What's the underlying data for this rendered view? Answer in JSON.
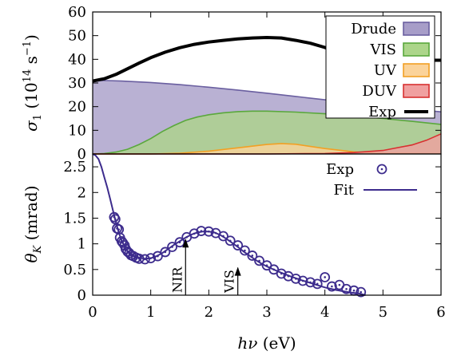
{
  "chart_data": [
    {
      "type": "area",
      "ylabel": "σ₁ (10¹⁴ s⁻¹)",
      "xlim": [
        0,
        6
      ],
      "ylim": [
        0,
        60
      ],
      "yticks": [
        "0",
        "10",
        "20",
        "30",
        "40",
        "50",
        "60"
      ],
      "legend_position": "top-right",
      "series": [
        {
          "name": "Drude",
          "color": "#a79dc8",
          "edge": "#6a5fa0",
          "kind": "area",
          "points": [
            [
              0,
              31
            ],
            [
              0.25,
              31
            ],
            [
              0.5,
              30.8
            ],
            [
              1,
              30.2
            ],
            [
              1.5,
              29.3
            ],
            [
              2,
              28.2
            ],
            [
              2.5,
              27
            ],
            [
              3,
              25.7
            ],
            [
              3.5,
              24.3
            ],
            [
              4,
              22.9
            ],
            [
              4.5,
              21.4
            ],
            [
              5,
              20
            ],
            [
              5.5,
              18.9
            ],
            [
              6,
              17.8
            ]
          ]
        },
        {
          "name": "VIS",
          "color": "#acd58a",
          "edge": "#5aa83c",
          "kind": "area",
          "points": [
            [
              0,
              0
            ],
            [
              0.2,
              0.2
            ],
            [
              0.4,
              0.8
            ],
            [
              0.6,
              2
            ],
            [
              0.8,
              4
            ],
            [
              1,
              6.5
            ],
            [
              1.2,
              9.5
            ],
            [
              1.4,
              12
            ],
            [
              1.6,
              14.2
            ],
            [
              1.8,
              15.6
            ],
            [
              2,
              16.6
            ],
            [
              2.25,
              17.4
            ],
            [
              2.5,
              17.9
            ],
            [
              2.75,
              18.1
            ],
            [
              3,
              18.1
            ],
            [
              3.5,
              17.7
            ],
            [
              4,
              17
            ],
            [
              4.5,
              16
            ],
            [
              5,
              15
            ],
            [
              5.5,
              13.8
            ],
            [
              6,
              12.5
            ]
          ]
        },
        {
          "name": "UV",
          "color": "#fbd39a",
          "edge": "#f2a024",
          "kind": "area",
          "points": [
            [
              0,
              0
            ],
            [
              1,
              0
            ],
            [
              1.5,
              0.3
            ],
            [
              2,
              1.2
            ],
            [
              2.5,
              2.6
            ],
            [
              3,
              4
            ],
            [
              3.25,
              4.4
            ],
            [
              3.5,
              4.1
            ],
            [
              4,
              2.3
            ],
            [
              4.5,
              0.9
            ],
            [
              5,
              0.3
            ],
            [
              6,
              0.1
            ]
          ]
        },
        {
          "name": "DUV",
          "color": "#f0a0a0",
          "edge": "#d83030",
          "kind": "area",
          "points": [
            [
              0,
              0
            ],
            [
              3,
              0
            ],
            [
              4,
              0.2
            ],
            [
              4.5,
              0.6
            ],
            [
              5,
              1.5
            ],
            [
              5.5,
              3.8
            ],
            [
              5.75,
              5.8
            ],
            [
              6,
              8.5
            ]
          ]
        },
        {
          "name": "Exp",
          "color": "#000000",
          "kind": "line",
          "points": [
            [
              0,
              30.8
            ],
            [
              0.2,
              31.8
            ],
            [
              0.4,
              33.6
            ],
            [
              0.6,
              36
            ],
            [
              0.8,
              38.4
            ],
            [
              1,
              40.7
            ],
            [
              1.25,
              43
            ],
            [
              1.5,
              44.9
            ],
            [
              1.75,
              46.3
            ],
            [
              2,
              47.3
            ],
            [
              2.25,
              48
            ],
            [
              2.5,
              48.6
            ],
            [
              2.75,
              49
            ],
            [
              3,
              49.2
            ],
            [
              3.25,
              49
            ],
            [
              3.5,
              48
            ],
            [
              3.75,
              46.8
            ],
            [
              4,
              45
            ],
            [
              4.25,
              42.5
            ],
            [
              4.5,
              41
            ],
            [
              5,
              39.8
            ],
            [
              5.5,
              39.6
            ],
            [
              6,
              39.6
            ]
          ]
        }
      ]
    },
    {
      "type": "scatter",
      "xlabel": "hν (eV)",
      "ylabel": "θK (mrad)",
      "xlim": [
        0,
        6
      ],
      "ylim": [
        0,
        2.75
      ],
      "xticks": [
        "0",
        "1",
        "2",
        "3",
        "4",
        "5",
        "6"
      ],
      "yticks": [
        "0",
        "0.5",
        "1",
        "1.5",
        "2",
        "2.5"
      ],
      "legend_position": "top-right",
      "series": [
        {
          "name": "Exp",
          "color": "#3d2c8d",
          "kind": "scatter",
          "points": [
            [
              0.37,
              1.52
            ],
            [
              0.39,
              1.48
            ],
            [
              0.42,
              1.3
            ],
            [
              0.45,
              1.28
            ],
            [
              0.47,
              1.12
            ],
            [
              0.5,
              1.05
            ],
            [
              0.52,
              1.02
            ],
            [
              0.55,
              0.97
            ],
            [
              0.57,
              0.9
            ],
            [
              0.6,
              0.85
            ],
            [
              0.63,
              0.82
            ],
            [
              0.66,
              0.78
            ],
            [
              0.7,
              0.76
            ],
            [
              0.75,
              0.73
            ],
            [
              0.8,
              0.71
            ],
            [
              0.9,
              0.7
            ],
            [
              1.0,
              0.72
            ],
            [
              1.12,
              0.76
            ],
            [
              1.25,
              0.84
            ],
            [
              1.37,
              0.94
            ],
            [
              1.5,
              1.03
            ],
            [
              1.62,
              1.13
            ],
            [
              1.75,
              1.2
            ],
            [
              1.87,
              1.25
            ],
            [
              2.0,
              1.24
            ],
            [
              2.12,
              1.21
            ],
            [
              2.25,
              1.15
            ],
            [
              2.37,
              1.06
            ],
            [
              2.5,
              0.97
            ],
            [
              2.62,
              0.87
            ],
            [
              2.75,
              0.77
            ],
            [
              2.87,
              0.67
            ],
            [
              3.0,
              0.58
            ],
            [
              3.12,
              0.5
            ],
            [
              3.25,
              0.42
            ],
            [
              3.37,
              0.37
            ],
            [
              3.5,
              0.32
            ],
            [
              3.62,
              0.28
            ],
            [
              3.75,
              0.25
            ],
            [
              3.87,
              0.22
            ],
            [
              4.0,
              0.35
            ],
            [
              4.12,
              0.17
            ],
            [
              4.25,
              0.2
            ],
            [
              4.37,
              0.12
            ],
            [
              4.5,
              0.09
            ],
            [
              4.62,
              0.06
            ]
          ]
        },
        {
          "name": "Fit",
          "color": "#3d2c8d",
          "kind": "line",
          "points": [
            [
              0,
              2.75
            ],
            [
              0.05,
              2.72
            ],
            [
              0.1,
              2.65
            ],
            [
              0.15,
              2.5
            ],
            [
              0.2,
              2.3
            ],
            [
              0.25,
              2.1
            ],
            [
              0.3,
              1.88
            ],
            [
              0.35,
              1.65
            ],
            [
              0.4,
              1.42
            ],
            [
              0.45,
              1.22
            ],
            [
              0.5,
              1.06
            ],
            [
              0.55,
              0.95
            ],
            [
              0.6,
              0.86
            ],
            [
              0.7,
              0.77
            ],
            [
              0.8,
              0.73
            ],
            [
              0.9,
              0.71
            ],
            [
              1.0,
              0.72
            ],
            [
              1.1,
              0.76
            ],
            [
              1.2,
              0.82
            ],
            [
              1.3,
              0.9
            ],
            [
              1.4,
              0.98
            ],
            [
              1.5,
              1.05
            ],
            [
              1.6,
              1.12
            ],
            [
              1.7,
              1.18
            ],
            [
              1.8,
              1.22
            ],
            [
              1.9,
              1.24
            ],
            [
              2.0,
              1.24
            ],
            [
              2.1,
              1.22
            ],
            [
              2.2,
              1.17
            ],
            [
              2.3,
              1.1
            ],
            [
              2.4,
              1.02
            ],
            [
              2.5,
              0.94
            ],
            [
              2.6,
              0.85
            ],
            [
              2.7,
              0.77
            ],
            [
              2.8,
              0.69
            ],
            [
              2.9,
              0.62
            ],
            [
              3.0,
              0.56
            ],
            [
              3.2,
              0.46
            ],
            [
              3.4,
              0.37
            ],
            [
              3.6,
              0.29
            ],
            [
              3.8,
              0.22
            ],
            [
              4.0,
              0.15
            ],
            [
              4.2,
              0.1
            ],
            [
              4.4,
              0.06
            ],
            [
              4.6,
              0.03
            ],
            [
              4.7,
              0
            ]
          ]
        }
      ],
      "annotations": [
        {
          "text": "NIR",
          "x": 1.6,
          "y_from": 0,
          "y_to": 1.1
        },
        {
          "text": "VIS",
          "x": 2.5,
          "y_from": 0,
          "y_to": 0.55
        }
      ]
    }
  ]
}
